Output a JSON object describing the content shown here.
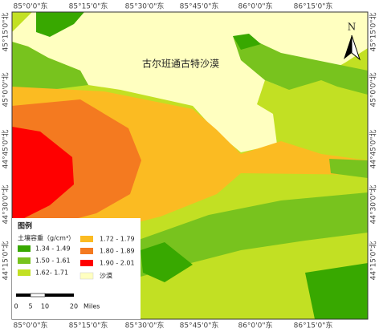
{
  "map": {
    "label": "古尔班通古特沙漠",
    "north": "N"
  },
  "longitude_labels": [
    "85°0'0\"东",
    "85°15'0\"东",
    "85°30'0\"东",
    "85°45'0\"东",
    "86°0'0\"东",
    "86°15'0\"东"
  ],
  "latitude_labels": [
    "45°15'0\"北",
    "45°0'0\"北",
    "44°45'0\"北",
    "44°30'0\"北",
    "44°15'0\"北"
  ],
  "legend": {
    "title": "图例",
    "subtitle": "土壤容重（g/cm³）",
    "items": [
      "1.34 - 1.49",
      "1.50 - 1.61",
      "1.62- 1.71",
      "1.72 - 1.79",
      "1.80 - 1.89",
      "1.90 - 2.01",
      "沙漠"
    ]
  },
  "scale_bar": {
    "ticks": [
      "0",
      "5",
      "10",
      "20"
    ],
    "unit": "Miles"
  }
}
